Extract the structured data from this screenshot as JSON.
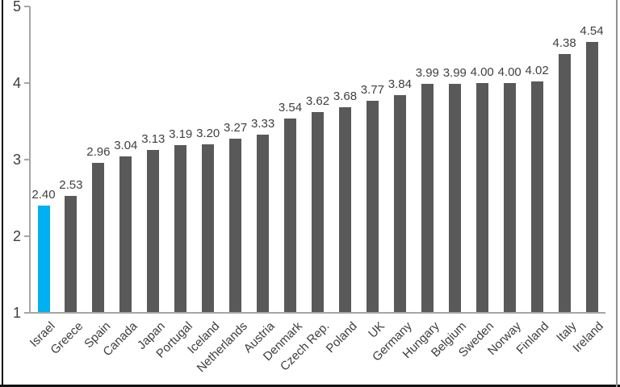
{
  "chart_data": {
    "type": "bar",
    "categories": [
      "Israel",
      "Greece",
      "Spain",
      "Canada",
      "Japan",
      "Portugal",
      "Iceland",
      "Netherlands",
      "Austria",
      "Denmark",
      "Czech Rep.",
      "Poland",
      "UK",
      "Germany",
      "Hungary",
      "Belgium",
      "Sweden",
      "Norway",
      "Finland",
      "Italy",
      "Ireland"
    ],
    "values": [
      2.4,
      2.53,
      2.96,
      3.04,
      3.13,
      3.19,
      3.2,
      3.27,
      3.33,
      3.54,
      3.62,
      3.68,
      3.77,
      3.84,
      3.99,
      3.99,
      4.0,
      4.0,
      4.02,
      4.38,
      4.54
    ],
    "data_labels": [
      "2.40",
      "2.53",
      "2.96",
      "3.04",
      "3.13",
      "3.19",
      "3.20",
      "3.27",
      "3.33",
      "3.54",
      "3.62",
      "3.68",
      "3.77",
      "3.84",
      "3.99",
      "3.99",
      "4.00",
      "4.00",
      "4.02",
      "4.38",
      "4.54"
    ],
    "title": "",
    "xlabel": "",
    "ylabel": "",
    "ylim": [
      1,
      5
    ],
    "yticks": [
      "1",
      "2",
      "3",
      "4",
      "5"
    ],
    "grid": false,
    "legend": "none",
    "highlight_category": "Israel",
    "colors": {
      "highlight_bar": "#00b0f0",
      "default_bar": "#595959",
      "axis": "#a6a6a6",
      "label_text": "#404040",
      "tick_text": "#3d3d3d",
      "frame_black": "#111111",
      "frame_gray": "#919191"
    }
  }
}
